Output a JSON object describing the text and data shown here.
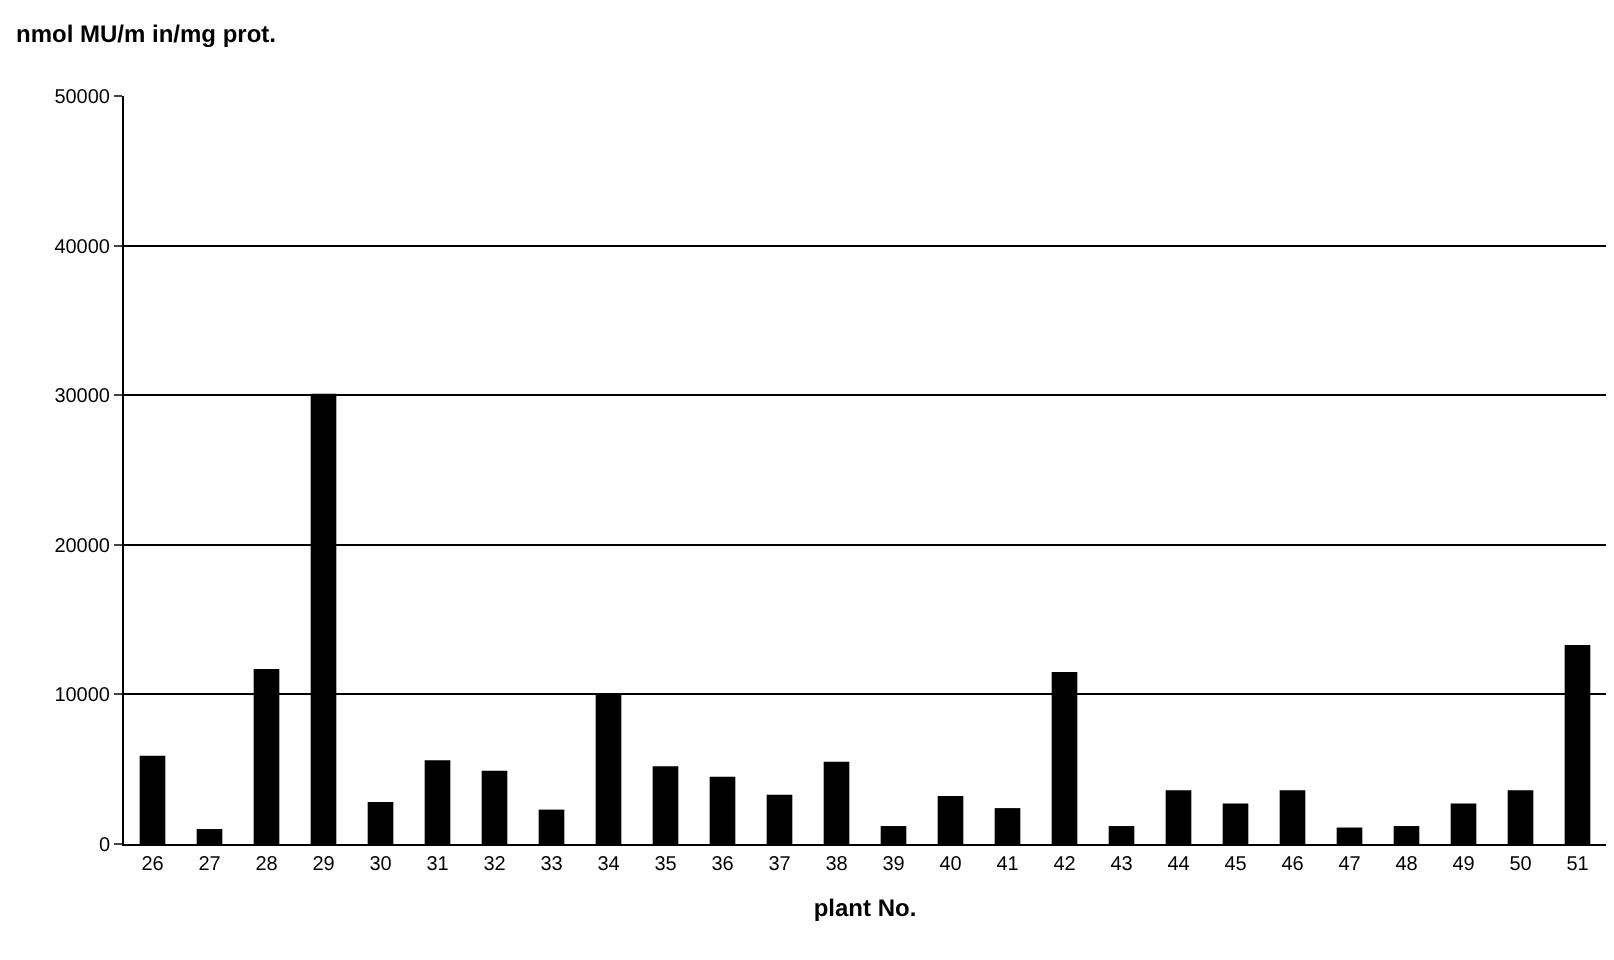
{
  "chart_data": {
    "type": "bar",
    "ylabel": "nmol MU/m in/mg prot.",
    "xlabel": "plant No.",
    "categories": [
      "26",
      "27",
      "28",
      "29",
      "30",
      "31",
      "32",
      "33",
      "34",
      "35",
      "36",
      "37",
      "38",
      "39",
      "40",
      "41",
      "42",
      "43",
      "44",
      "45",
      "46",
      "47",
      "48",
      "49",
      "50",
      "51"
    ],
    "values": [
      5900,
      1000,
      11700,
      30100,
      2800,
      5600,
      4900,
      2300,
      10000,
      5200,
      4500,
      3300,
      5500,
      1200,
      3200,
      2400,
      11500,
      1200,
      3600,
      2700,
      3600,
      1100,
      1200,
      2700,
      3600,
      13300
    ],
    "color": "#000000",
    "ylim": [
      0,
      50000
    ],
    "yticks": [
      0,
      10000,
      20000,
      30000,
      40000,
      50000
    ],
    "grid": "y"
  }
}
